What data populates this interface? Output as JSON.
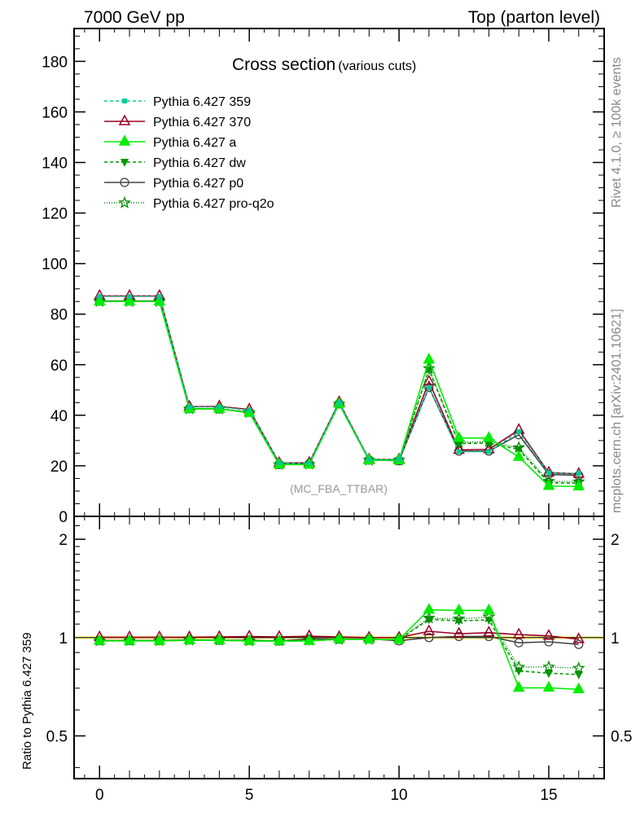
{
  "chart_data": {
    "type": "line",
    "title": "Cross section",
    "subtitle": "(various cuts)",
    "top_left_label": "7000 GeV pp",
    "top_right_label": "Top (parton level)",
    "side_label_top": "Rivet 4.1.0, ≥ 100k events",
    "side_label_bottom": "mcplots.cern.ch [arXiv:2401.10621]",
    "analysis_label": "(MC_FBA_TTBAR)",
    "ratio_ylabel": "Ratio to Pythia 6.427 359",
    "xlim": [
      -0.85,
      16.85
    ],
    "ylim": [
      0,
      193
    ],
    "ratio_ylim": [
      0.37,
      2.35
    ],
    "x_ticks": [
      "0",
      "5",
      "10",
      "15"
    ],
    "y_ticks": [
      "0",
      "20",
      "40",
      "60",
      "80",
      "100",
      "120",
      "140",
      "160",
      "180"
    ],
    "ratio_ticks": [
      "0.5",
      "1",
      "2"
    ],
    "legend_position": "top-left",
    "x": [
      0,
      1,
      2,
      3,
      4,
      5,
      6,
      7,
      8,
      9,
      10,
      11,
      12,
      13,
      14,
      15,
      16
    ],
    "series": [
      {
        "name": "Pythia 6.427 359",
        "color": "#00cc99",
        "dash": "4,3",
        "marker": "square",
        "values": [
          87,
          87,
          87,
          43.3,
          43.3,
          42,
          21,
          21,
          45,
          22.5,
          22.5,
          51,
          25.6,
          25.6,
          33.5,
          17.1,
          17.0
        ]
      },
      {
        "name": "Pythia 6.427 370",
        "color": "#990022",
        "dash": "",
        "marker": "triangle-open",
        "values": [
          87.2,
          87.2,
          87.2,
          43.4,
          43.5,
          42.3,
          21.1,
          21.2,
          45.2,
          22.5,
          22.5,
          53.3,
          26.3,
          26.5,
          34.2,
          17.3,
          16.8
        ]
      },
      {
        "name": "Pythia 6.427 a",
        "color": "#00ee00",
        "dash": "",
        "marker": "triangle",
        "values": [
          85,
          85,
          85,
          42.5,
          42.5,
          41,
          20.5,
          20.5,
          44.5,
          22.2,
          22.2,
          62,
          31,
          31,
          23.5,
          12,
          11.8
        ]
      },
      {
        "name": "Pythia 6.427 dw",
        "color": "#009900",
        "dash": "4,3",
        "marker": "triangle-down",
        "values": [
          85,
          85,
          85,
          42.5,
          42.5,
          41,
          20.5,
          20.5,
          44.5,
          22.2,
          22.2,
          58,
          28.8,
          29,
          26.5,
          13.3,
          13.1
        ]
      },
      {
        "name": "Pythia 6.427 p0",
        "color": "#444444",
        "dash": "",
        "marker": "circle-open",
        "values": [
          85.2,
          85.2,
          85.2,
          42.6,
          42.5,
          41.2,
          20.5,
          20.8,
          44.5,
          22.3,
          22,
          51,
          25.8,
          25.8,
          32.3,
          16.6,
          16.2
        ]
      },
      {
        "name": "Pythia 6.427 pro-q2o",
        "color": "#008800",
        "dash": "1,2",
        "marker": "star",
        "values": [
          85,
          85,
          85,
          42.5,
          42.5,
          41,
          20.5,
          20.6,
          44.4,
          22.2,
          22.2,
          58.5,
          29.2,
          29.6,
          27.2,
          13.9,
          13.7
        ]
      }
    ]
  }
}
